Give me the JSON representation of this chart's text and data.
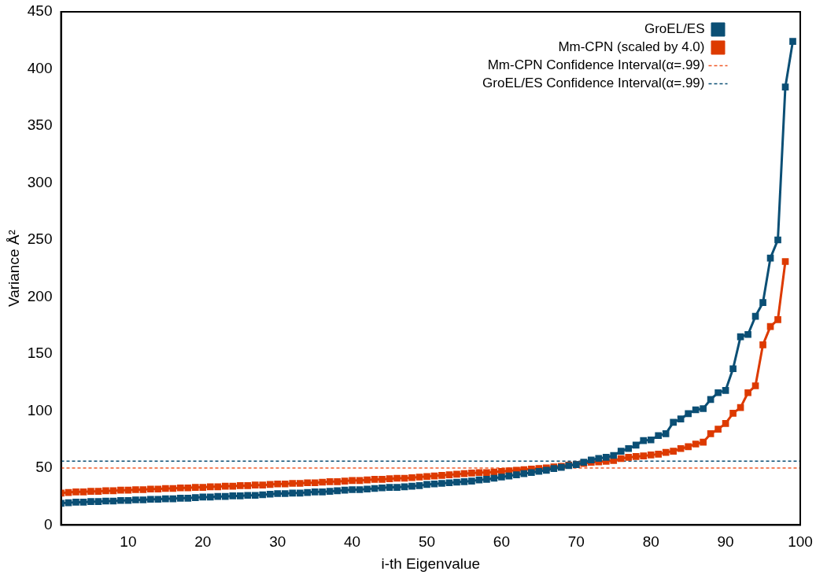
{
  "chart_data": {
    "type": "line",
    "xlabel": "i-th Eigenvalue",
    "ylabel": "Variance Å²",
    "xlim": [
      1,
      100
    ],
    "xticks": [
      10,
      20,
      30,
      40,
      50,
      60,
      70,
      80,
      90,
      100
    ],
    "ylim": [
      0,
      450
    ],
    "yticks": [
      0,
      50,
      100,
      150,
      200,
      250,
      300,
      350,
      400,
      450
    ],
    "grid": false,
    "legend": "top right",
    "marker": "square",
    "line_style": "solid",
    "series": [
      {
        "name": "GroEL/ES",
        "color": "#0b4f75",
        "x": [
          1,
          2,
          3,
          4,
          5,
          6,
          7,
          8,
          9,
          10,
          11,
          12,
          13,
          14,
          15,
          16,
          17,
          18,
          19,
          20,
          21,
          22,
          23,
          24,
          25,
          26,
          27,
          28,
          29,
          30,
          31,
          32,
          33,
          34,
          35,
          36,
          37,
          38,
          39,
          40,
          41,
          42,
          43,
          44,
          45,
          46,
          47,
          48,
          49,
          50,
          51,
          52,
          53,
          54,
          55,
          56,
          57,
          58,
          59,
          60,
          61,
          62,
          63,
          64,
          65,
          66,
          67,
          68,
          69,
          70,
          71,
          72,
          73,
          74,
          75,
          76,
          77,
          78,
          79,
          80,
          81,
          82,
          83,
          84,
          85,
          86,
          87,
          88,
          89,
          90,
          91,
          92,
          93,
          94,
          95,
          96,
          97,
          98,
          99
        ],
        "values": [
          19,
          19.5,
          20,
          20,
          20.5,
          20.5,
          21,
          21,
          21.5,
          21.5,
          22,
          22,
          22.5,
          22.5,
          23,
          23,
          23.5,
          23.5,
          24,
          24.5,
          24.5,
          25,
          25,
          25.5,
          25.5,
          26,
          26,
          26.5,
          27,
          27.5,
          27.5,
          28,
          28,
          28.5,
          29,
          29,
          29.5,
          30,
          30.5,
          31,
          31,
          31.5,
          32,
          32.5,
          33,
          33,
          33.5,
          34,
          34.5,
          35.5,
          36,
          36.5,
          37,
          37.5,
          38,
          38.5,
          39.5,
          40,
          41,
          42,
          43,
          44,
          45,
          46,
          47,
          48,
          49.5,
          50.5,
          52,
          53,
          55,
          57,
          58.4,
          59.3,
          61,
          64.7,
          67,
          70,
          74,
          74.6,
          78.4,
          80,
          90,
          93,
          97.6,
          101,
          102,
          110,
          116,
          118,
          137,
          165,
          167,
          183,
          195,
          234,
          250,
          384,
          424
        ]
      },
      {
        "name": "Mm-CPN (scaled by 4.0)",
        "color": "#dd3a00",
        "x": [
          1,
          2,
          3,
          4,
          5,
          6,
          7,
          8,
          9,
          10,
          11,
          12,
          13,
          14,
          15,
          16,
          17,
          18,
          19,
          20,
          21,
          22,
          23,
          24,
          25,
          26,
          27,
          28,
          29,
          30,
          31,
          32,
          33,
          34,
          35,
          36,
          37,
          38,
          39,
          40,
          41,
          42,
          43,
          44,
          45,
          46,
          47,
          48,
          49,
          50,
          51,
          52,
          53,
          54,
          55,
          56,
          57,
          58,
          59,
          60,
          61,
          62,
          63,
          64,
          65,
          66,
          67,
          68,
          69,
          70,
          71,
          72,
          73,
          74,
          75,
          76,
          77,
          78,
          79,
          80,
          81,
          82,
          83,
          84,
          85,
          86,
          87,
          88,
          89,
          90,
          91,
          92,
          93,
          94,
          95,
          96,
          97,
          98
        ],
        "values": [
          28,
          28.5,
          29,
          29,
          29.5,
          29.5,
          30,
          30,
          30.5,
          30.5,
          31,
          31,
          31.5,
          31.5,
          32,
          32,
          32.5,
          32.5,
          33,
          33,
          33.5,
          33.5,
          34,
          34,
          34.5,
          34.5,
          35,
          35,
          35.5,
          36,
          36,
          36.5,
          36.5,
          37,
          37,
          37.5,
          38,
          38,
          38.5,
          39,
          39,
          39.5,
          40,
          40,
          40.5,
          41,
          41,
          41.5,
          42,
          42.5,
          43,
          43.5,
          44,
          44.5,
          45,
          45.5,
          46,
          46,
          46.5,
          47,
          47.5,
          48,
          48.5,
          49,
          49.5,
          50,
          51,
          51.5,
          52.5,
          53,
          54,
          55,
          55.4,
          55.8,
          56.5,
          58.2,
          59.3,
          60,
          60.5,
          61.4,
          62.1,
          63.7,
          64.7,
          67,
          68.6,
          71,
          72.6,
          80,
          84,
          89,
          98,
          103,
          116,
          122,
          158,
          174,
          180,
          231
        ]
      }
    ],
    "ref_lines": [
      {
        "axis": "y",
        "value": 50,
        "label": "Mm-CPN Confidence Interval(α=.99)",
        "color": "#f05a28",
        "line_style": "dashed"
      },
      {
        "axis": "y",
        "value": 56,
        "label": "GroEL/ES Confidence Interval(α=.99)",
        "color": "#0b4f75",
        "line_style": "dashed"
      }
    ]
  }
}
